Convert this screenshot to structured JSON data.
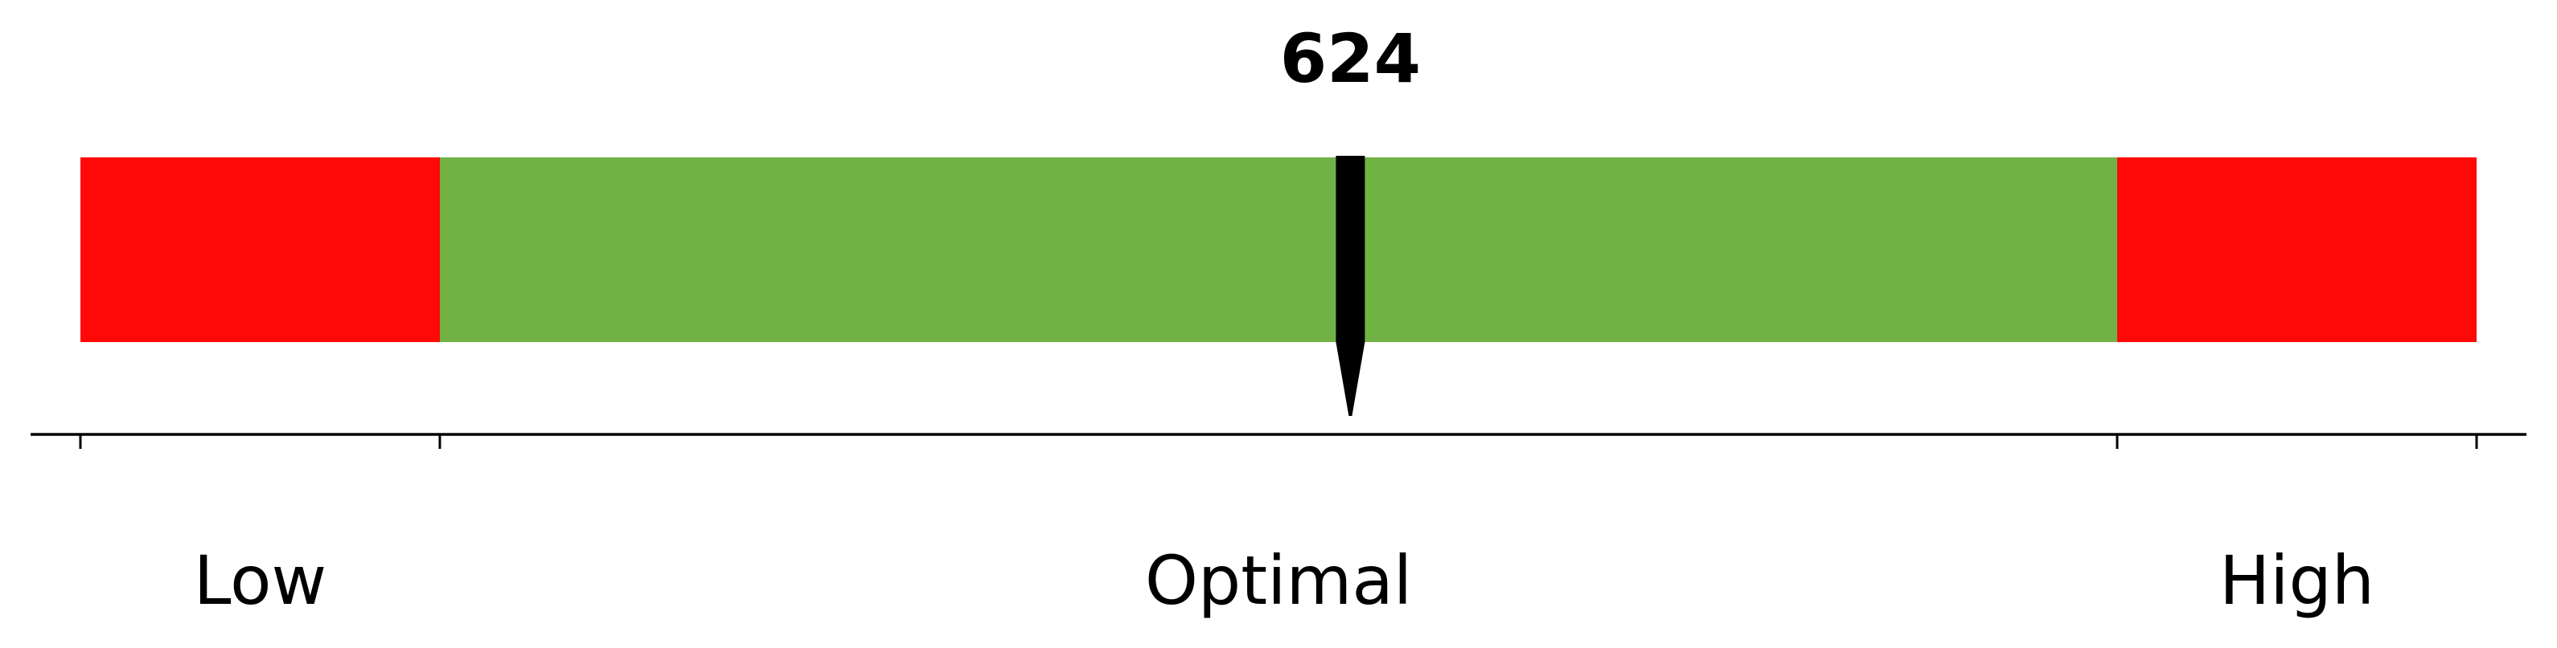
{
  "chart_data": {
    "type": "bar",
    "orientation": "horizontal",
    "marker": {
      "value": 624,
      "label": "624"
    },
    "xlim": [
      200,
      1000
    ],
    "segments": [
      {
        "name": "Low",
        "label": "Low",
        "start": 200,
        "end": 320,
        "color": "#ff0808"
      },
      {
        "name": "Optimal",
        "label": "Optimal",
        "start": 320,
        "end": 880,
        "color": "#71b245"
      },
      {
        "name": "High",
        "label": "High",
        "start": 880,
        "end": 1000,
        "color": "#ff0808"
      }
    ],
    "ticks": [
      200,
      320,
      880,
      1000
    ],
    "marker_color": "#000000",
    "axis_color": "#000000",
    "grid": false,
    "legend": "none"
  }
}
